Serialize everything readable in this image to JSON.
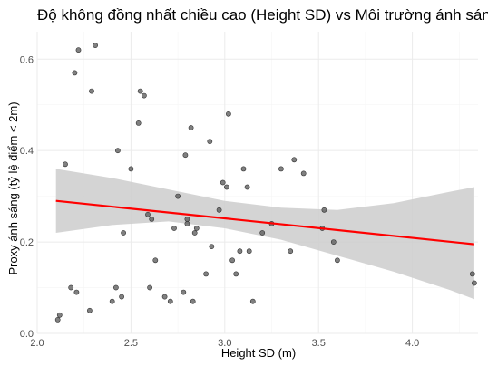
{
  "chart_data": {
    "type": "scatter",
    "title": "Độ không đồng nhất chiều cao (Height SD) vs Môi trường ánh sáng",
    "xlabel": "Height SD (m)",
    "ylabel": "Proxy ánh sáng (tỷ lệ điểm < 2m)",
    "xlim": [
      2.0,
      4.35
    ],
    "ylim": [
      0.0,
      0.66
    ],
    "x_ticks": [
      2.0,
      2.5,
      3.0,
      3.5,
      4.0
    ],
    "x_tick_labels": [
      "2.0",
      "2.5",
      "3.0",
      "3.5",
      "4.0"
    ],
    "y_ticks": [
      0.0,
      0.2,
      0.4,
      0.6
    ],
    "y_tick_labels": [
      "0.0",
      "0.2",
      "0.4",
      "0.6"
    ],
    "grid": true,
    "points": [
      {
        "x": 2.11,
        "y": 0.03
      },
      {
        "x": 2.12,
        "y": 0.04
      },
      {
        "x": 2.15,
        "y": 0.37
      },
      {
        "x": 2.18,
        "y": 0.1
      },
      {
        "x": 2.2,
        "y": 0.57
      },
      {
        "x": 2.21,
        "y": 0.09
      },
      {
        "x": 2.22,
        "y": 0.62
      },
      {
        "x": 2.28,
        "y": 0.05
      },
      {
        "x": 2.29,
        "y": 0.53
      },
      {
        "x": 2.31,
        "y": 0.63
      },
      {
        "x": 2.4,
        "y": 0.07
      },
      {
        "x": 2.42,
        "y": 0.1
      },
      {
        "x": 2.43,
        "y": 0.4
      },
      {
        "x": 2.45,
        "y": 0.08
      },
      {
        "x": 2.46,
        "y": 0.22
      },
      {
        "x": 2.5,
        "y": 0.36
      },
      {
        "x": 2.54,
        "y": 0.46
      },
      {
        "x": 2.55,
        "y": 0.53
      },
      {
        "x": 2.57,
        "y": 0.52
      },
      {
        "x": 2.59,
        "y": 0.26
      },
      {
        "x": 2.6,
        "y": 0.1
      },
      {
        "x": 2.61,
        "y": 0.25
      },
      {
        "x": 2.63,
        "y": 0.16
      },
      {
        "x": 2.68,
        "y": 0.08
      },
      {
        "x": 2.71,
        "y": 0.07
      },
      {
        "x": 2.73,
        "y": 0.23
      },
      {
        "x": 2.75,
        "y": 0.3
      },
      {
        "x": 2.78,
        "y": 0.09
      },
      {
        "x": 2.79,
        "y": 0.39
      },
      {
        "x": 2.8,
        "y": 0.25
      },
      {
        "x": 2.8,
        "y": 0.24
      },
      {
        "x": 2.82,
        "y": 0.45
      },
      {
        "x": 2.83,
        "y": 0.07
      },
      {
        "x": 2.84,
        "y": 0.22
      },
      {
        "x": 2.85,
        "y": 0.23
      },
      {
        "x": 2.9,
        "y": 0.13
      },
      {
        "x": 2.92,
        "y": 0.42
      },
      {
        "x": 2.93,
        "y": 0.19
      },
      {
        "x": 2.97,
        "y": 0.27
      },
      {
        "x": 2.99,
        "y": 0.33
      },
      {
        "x": 3.01,
        "y": 0.32
      },
      {
        "x": 3.02,
        "y": 0.48
      },
      {
        "x": 3.04,
        "y": 0.16
      },
      {
        "x": 3.06,
        "y": 0.13
      },
      {
        "x": 3.08,
        "y": 0.18
      },
      {
        "x": 3.1,
        "y": 0.36
      },
      {
        "x": 3.12,
        "y": 0.32
      },
      {
        "x": 3.13,
        "y": 0.18
      },
      {
        "x": 3.15,
        "y": 0.07
      },
      {
        "x": 3.2,
        "y": 0.22
      },
      {
        "x": 3.25,
        "y": 0.24
      },
      {
        "x": 3.3,
        "y": 0.36
      },
      {
        "x": 3.35,
        "y": 0.18
      },
      {
        "x": 3.37,
        "y": 0.38
      },
      {
        "x": 3.42,
        "y": 0.35
      },
      {
        "x": 3.52,
        "y": 0.23
      },
      {
        "x": 3.53,
        "y": 0.27
      },
      {
        "x": 3.58,
        "y": 0.2
      },
      {
        "x": 3.6,
        "y": 0.16
      },
      {
        "x": 4.32,
        "y": 0.13
      },
      {
        "x": 4.33,
        "y": 0.11
      }
    ],
    "fit_line": {
      "x": [
        2.1,
        4.33
      ],
      "y": [
        0.29,
        0.195
      ],
      "color": "#ff0000"
    },
    "confidence_band": {
      "x": [
        2.1,
        2.4,
        2.7,
        3.0,
        3.3,
        3.6,
        3.9,
        4.2,
        4.33
      ],
      "lower": [
        0.22,
        0.237,
        0.245,
        0.23,
        0.205,
        0.17,
        0.135,
        0.095,
        0.075
      ],
      "upper": [
        0.36,
        0.34,
        0.315,
        0.29,
        0.275,
        0.27,
        0.285,
        0.31,
        0.32
      ],
      "color": "#cccccc"
    },
    "point_color": "#555555",
    "background": "#ffffff"
  }
}
